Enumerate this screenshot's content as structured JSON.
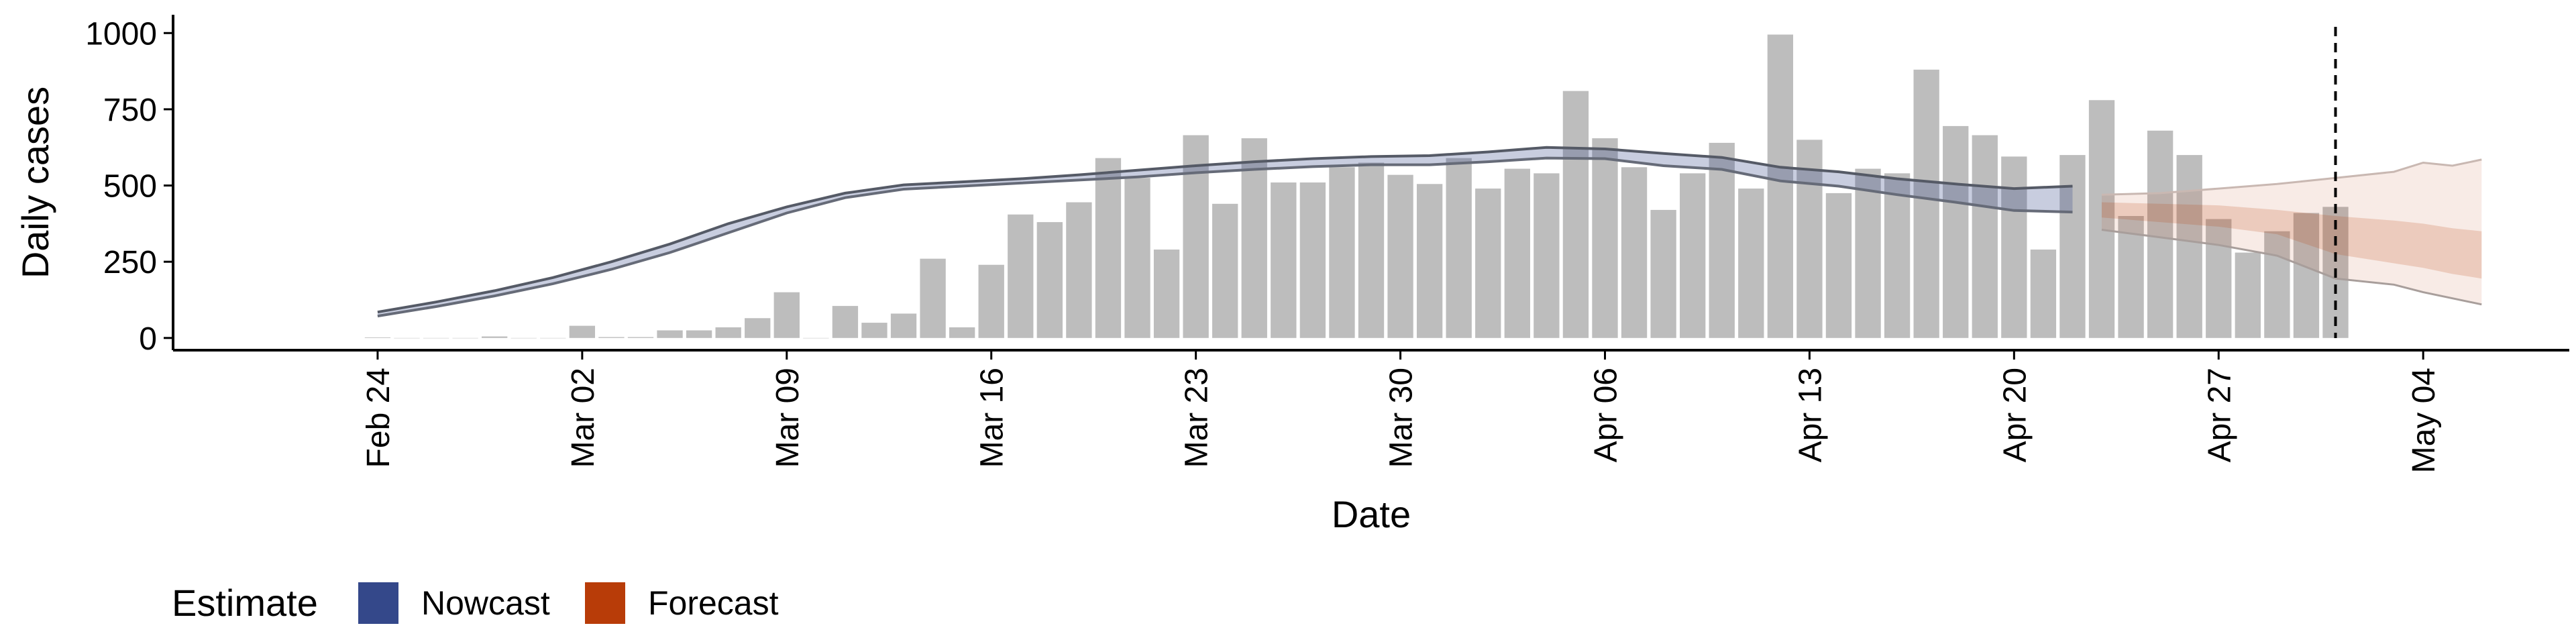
{
  "chart_data": {
    "type": "bar",
    "xlabel": "Date",
    "ylabel": "Daily cases",
    "ylim": [
      -40,
      1060
    ],
    "yticks": [
      0,
      250,
      500,
      750,
      1000
    ],
    "x_tick_labels": [
      "Feb 24",
      "Mar 02",
      "Mar 09",
      "Mar 16",
      "Mar 23",
      "Mar 30",
      "Apr 06",
      "Apr 13",
      "Apr 20",
      "Apr 27",
      "May 04"
    ],
    "x_tick_dates": [
      "2020-02-24",
      "2020-03-02",
      "2020-03-09",
      "2020-03-16",
      "2020-03-23",
      "2020-03-30",
      "2020-04-06",
      "2020-04-13",
      "2020-04-20",
      "2020-04-27",
      "2020-05-04"
    ],
    "x_range": [
      "2020-02-17",
      "2020-05-09"
    ],
    "grid": false,
    "vline_date": "2020-05-01",
    "bars": {
      "color": "#bdbdbd",
      "dates": [
        "2020-02-24",
        "2020-02-25",
        "2020-02-26",
        "2020-02-27",
        "2020-02-28",
        "2020-02-29",
        "2020-03-01",
        "2020-03-02",
        "2020-03-03",
        "2020-03-04",
        "2020-03-05",
        "2020-03-06",
        "2020-03-07",
        "2020-03-08",
        "2020-03-09",
        "2020-03-10",
        "2020-03-11",
        "2020-03-12",
        "2020-03-13",
        "2020-03-14",
        "2020-03-15",
        "2020-03-16",
        "2020-03-17",
        "2020-03-18",
        "2020-03-19",
        "2020-03-20",
        "2020-03-21",
        "2020-03-22",
        "2020-03-23",
        "2020-03-24",
        "2020-03-25",
        "2020-03-26",
        "2020-03-27",
        "2020-03-28",
        "2020-03-29",
        "2020-03-30",
        "2020-03-31",
        "2020-04-01",
        "2020-04-02",
        "2020-04-03",
        "2020-04-04",
        "2020-04-05",
        "2020-04-06",
        "2020-04-07",
        "2020-04-08",
        "2020-04-09",
        "2020-04-10",
        "2020-04-11",
        "2020-04-12",
        "2020-04-13",
        "2020-04-14",
        "2020-04-15",
        "2020-04-16",
        "2020-04-17",
        "2020-04-18",
        "2020-04-19",
        "2020-04-20",
        "2020-04-21",
        "2020-04-22",
        "2020-04-23",
        "2020-04-24",
        "2020-04-25",
        "2020-04-26",
        "2020-04-27",
        "2020-04-28",
        "2020-04-29",
        "2020-04-30",
        "2020-05-01"
      ],
      "values": [
        2,
        0,
        0,
        0,
        5,
        0,
        0,
        40,
        3,
        3,
        25,
        25,
        35,
        65,
        150,
        0,
        105,
        50,
        80,
        260,
        35,
        240,
        405,
        380,
        445,
        590,
        525,
        290,
        665,
        440,
        655,
        510,
        510,
        560,
        575,
        535,
        505,
        590,
        490,
        555,
        540,
        810,
        655,
        560,
        420,
        540,
        640,
        490,
        995,
        650,
        475,
        555,
        540,
        880,
        695,
        665,
        595,
        290,
        600,
        780,
        400,
        680,
        600,
        390,
        280,
        350,
        410,
        430
      ]
    },
    "series": [
      {
        "name": "Nowcast",
        "color": "#3b4a8c",
        "dates": [
          "2020-02-24",
          "2020-02-26",
          "2020-02-28",
          "2020-03-01",
          "2020-03-03",
          "2020-03-05",
          "2020-03-07",
          "2020-03-09",
          "2020-03-11",
          "2020-03-13",
          "2020-03-15",
          "2020-03-17",
          "2020-03-19",
          "2020-03-21",
          "2020-03-23",
          "2020-03-25",
          "2020-03-27",
          "2020-03-29",
          "2020-03-31",
          "2020-04-02",
          "2020-04-04",
          "2020-04-06",
          "2020-04-08",
          "2020-04-10",
          "2020-04-12",
          "2020-04-14",
          "2020-04-16",
          "2020-04-18",
          "2020-04-20",
          "2020-04-22"
        ],
        "lower": [
          72,
          103,
          138,
          178,
          225,
          280,
          345,
          410,
          460,
          488,
          498,
          508,
          518,
          528,
          542,
          553,
          562,
          568,
          568,
          578,
          590,
          588,
          565,
          553,
          515,
          498,
          470,
          445,
          418,
          413
        ],
        "upper": [
          85,
          118,
          155,
          198,
          250,
          308,
          375,
          430,
          475,
          502,
          512,
          522,
          535,
          550,
          565,
          578,
          588,
          595,
          598,
          610,
          625,
          620,
          605,
          592,
          560,
          545,
          522,
          505,
          490,
          498
        ],
        "median_upper": [
          78,
          110,
          148,
          188,
          238,
          295,
          360,
          420,
          466,
          493,
          503,
          512,
          524,
          538,
          552,
          565,
          575,
          582,
          583,
          594,
          607,
          605,
          585,
          572,
          538,
          522,
          498,
          475,
          455,
          455
        ],
        "median_lower": [
          78,
          110,
          148,
          188,
          238,
          295,
          360,
          420,
          466,
          493,
          503,
          512,
          524,
          538,
          552,
          565,
          575,
          582,
          583,
          594,
          607,
          605,
          585,
          572,
          538,
          522,
          498,
          475,
          455,
          455
        ]
      },
      {
        "name": "Forecast",
        "color": "#b83c08",
        "dates": [
          "2020-04-23",
          "2020-04-25",
          "2020-04-27",
          "2020-04-29",
          "2020-05-01",
          "2020-05-03",
          "2020-05-04",
          "2020-05-05",
          "2020-05-06"
        ],
        "lower": [
          355,
          330,
          305,
          270,
          195,
          175,
          150,
          130,
          110
        ],
        "upper": [
          470,
          475,
          490,
          505,
          525,
          545,
          575,
          565,
          585
        ],
        "inner_lower": [
          395,
          380,
          365,
          340,
          275,
          245,
          230,
          210,
          195
        ],
        "inner_upper": [
          445,
          440,
          435,
          420,
          400,
          385,
          375,
          360,
          350
        ]
      }
    ],
    "legend": {
      "title": "Estimate",
      "position": "bottom-left",
      "entries": [
        {
          "label": "Nowcast",
          "color": "#34488a"
        },
        {
          "label": "Forecast",
          "color": "#b83c08"
        }
      ]
    }
  }
}
